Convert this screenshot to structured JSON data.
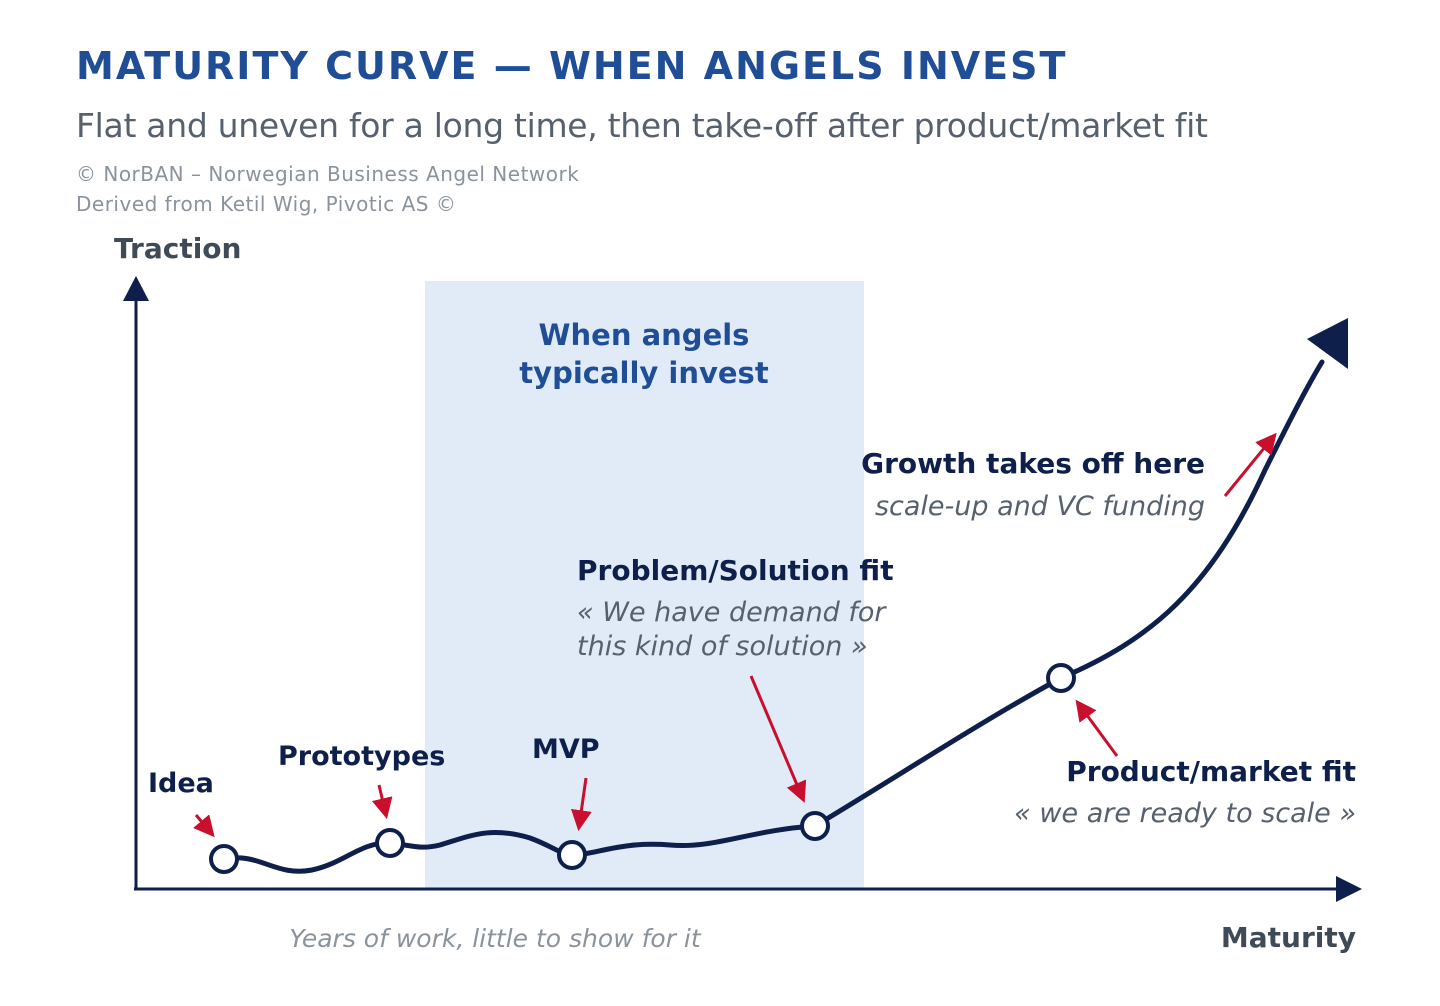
{
  "title": "MATURITY CURVE — WHEN ANGELS INVEST",
  "subtitle": "Flat and uneven for a long time, then take-off after product/market fit",
  "credits": [
    "© NorBAN – Norwegian Business Angel Network",
    "Derived from Ketil Wig, Pivotic AS ©"
  ],
  "axes": {
    "y_label": "Traction",
    "x_label": "Maturity",
    "x_note": "Years of work, little to show for it"
  },
  "zone": {
    "line1": "When angels",
    "line2": "typically invest"
  },
  "stages": {
    "idea": "Idea",
    "prototypes": "Prototypes",
    "mvp": "MVP",
    "problem_solution": {
      "title": "Problem/Solution fit",
      "quote1": "« We have demand for",
      "quote2": "this kind of solution »"
    },
    "product_market": {
      "title": "Product/market fit",
      "quote": "« we are ready to scale »"
    },
    "growth": {
      "title": "Growth takes off here",
      "note": "scale-up and VC funding"
    }
  },
  "colors": {
    "title_blue": "#1f4e96",
    "curve_navy": "#0d1f4a",
    "arrow_red": "#c8102e",
    "zone_fill": "#e1ebf7",
    "grey_text": "#56616d"
  }
}
